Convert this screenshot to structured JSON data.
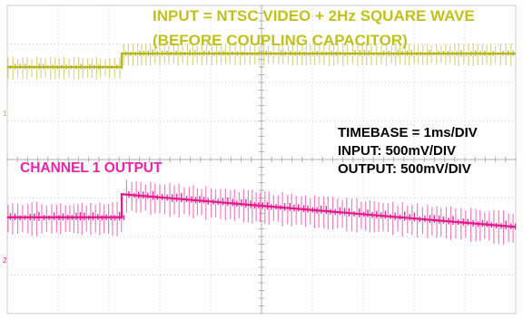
{
  "chart_data": {
    "type": "line",
    "annotations": {
      "input_line1": "INPUT = NTSC VIDEO + 2Hz SQUARE WAVE",
      "input_line2": "(BEFORE COUPLING CAPACITOR)",
      "output_label": "CHANNEL 1 OUTPUT",
      "timebase": "TIMEBASE = 1ms/DIV",
      "input_scale": "INPUT: 500mV/DIV",
      "output_scale": "OUTPUT: 500mV/DIV"
    },
    "channel_markers": [
      "1",
      "2"
    ],
    "grid": true,
    "divisions": {
      "x": 10,
      "y": 8
    },
    "time_per_div_ms": 1,
    "series": [
      {
        "name": "INPUT = NTSC VIDEO + 2Hz SQUARE WAVE",
        "color": "#b5b520",
        "volts_per_div": 0.5,
        "square_step_time_div": 2.25,
        "baseline_before_step_div": 2.4,
        "baseline_after_step_div": 2.75,
        "video_amplitude_div": 0.6
      },
      {
        "name": "CHANNEL 1 OUTPUT",
        "color": "#e8168b",
        "volts_per_div": 0.5,
        "square_step_time_div": 2.25,
        "baseline_before_step_div": -1.5,
        "baseline_after_step_div": -0.9,
        "baseline_end_div": -1.75,
        "video_amplitude_div": 0.9
      }
    ]
  }
}
